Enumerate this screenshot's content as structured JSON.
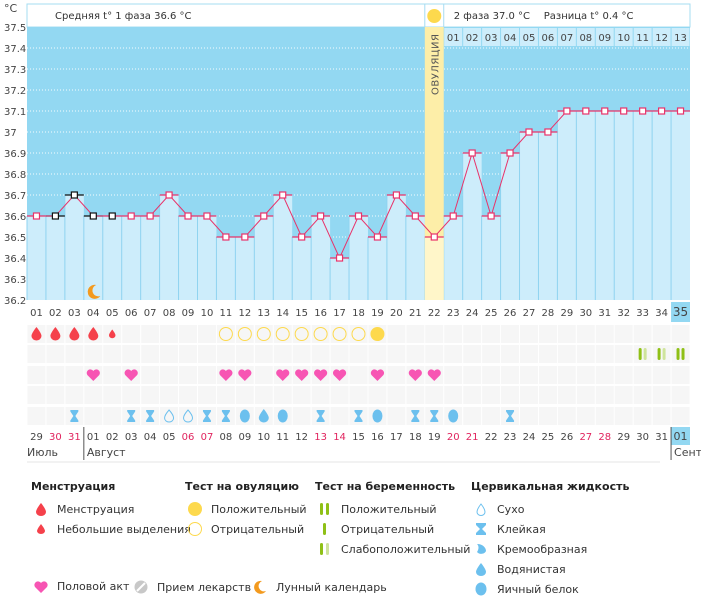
{
  "chart_data": {
    "type": "line",
    "title": "",
    "ylabel": "°C",
    "ylim": [
      36.2,
      37.5
    ],
    "yticks": [
      "37.5",
      "37.4",
      "37.3",
      "37.2",
      "37.1",
      "37",
      "36.9",
      "36.8",
      "36.7",
      "36.6",
      "36.5",
      "36.4",
      "36.3",
      "36.2"
    ],
    "x": [
      "01",
      "02",
      "03",
      "04",
      "05",
      "06",
      "07",
      "08",
      "09",
      "10",
      "11",
      "12",
      "13",
      "14",
      "15",
      "16",
      "17",
      "18",
      "19",
      "20",
      "21",
      "22",
      "23",
      "24",
      "25",
      "26",
      "27",
      "28",
      "29",
      "30",
      "31",
      "32",
      "33",
      "34",
      "35"
    ],
    "series": [
      {
        "name": "Базальная температура",
        "values": [
          36.6,
          36.6,
          36.7,
          36.6,
          36.6,
          36.6,
          36.6,
          36.7,
          36.6,
          36.6,
          36.5,
          36.5,
          36.6,
          36.7,
          36.5,
          36.6,
          36.4,
          36.6,
          36.5,
          36.7,
          36.6,
          36.5,
          36.6,
          36.9,
          36.6,
          36.9,
          37.0,
          37.0,
          37.1,
          37.1,
          37.1,
          37.1,
          37.1,
          37.1,
          37.1
        ]
      }
    ],
    "black_marker_days": [
      2,
      3,
      4,
      5
    ],
    "ovulation_day": 22,
    "current_day": 35,
    "phase2_days": [
      "01",
      "02",
      "03",
      "04",
      "05",
      "06",
      "07",
      "08",
      "09",
      "10",
      "11",
      "12",
      "13"
    ],
    "moon_day": 4,
    "grid": true
  },
  "header": {
    "phase1_label": "Средняя t° 1 фаза",
    "phase1_value": "36.6 °C",
    "phase2_label": "2 фаза",
    "phase2_value": "37.0 °C",
    "diff_label": "Разница t°",
    "diff_value": "0.4 °C",
    "ovulation_label": "ОВУЛЯЦИЯ",
    "unit": "°C"
  },
  "calendar": {
    "dates": [
      "29",
      "30",
      "31",
      "01",
      "02",
      "03",
      "04",
      "05",
      "06",
      "07",
      "08",
      "09",
      "10",
      "11",
      "12",
      "13",
      "14",
      "15",
      "16",
      "17",
      "18",
      "19",
      "20",
      "21",
      "22",
      "23",
      "24",
      "25",
      "26",
      "27",
      "28",
      "29",
      "30",
      "31",
      "01"
    ],
    "weekend_dates_idx": [
      1,
      2,
      8,
      9,
      15,
      16,
      22,
      23,
      29,
      30
    ],
    "months": [
      {
        "label": "Июль",
        "start_idx": 0
      },
      {
        "label": "Август",
        "start_idx": 3
      },
      {
        "label": "Сент",
        "start_idx": 34
      }
    ],
    "menstruation": {
      "1": "full",
      "2": "full",
      "3": "full",
      "4": "full",
      "5": "light"
    },
    "ovulation_test": {
      "11": "neg",
      "12": "neg",
      "13": "neg",
      "14": "neg",
      "15": "neg",
      "16": "neg",
      "17": "neg",
      "18": "neg",
      "19": "pos"
    },
    "pregnancy_test": {
      "33": "weak",
      "34": "weak",
      "35": "pos"
    },
    "intercourse": [
      4,
      6,
      11,
      12,
      14,
      15,
      16,
      17,
      19,
      21,
      22
    ],
    "cervical": {
      "3": "sticky",
      "6": "sticky",
      "7": "sticky",
      "8": "dry",
      "9": "dry",
      "10": "sticky",
      "11": "sticky",
      "12": "egg",
      "13": "watery",
      "14": "egg",
      "16": "sticky",
      "18": "sticky",
      "19": "egg",
      "21": "sticky",
      "22": "sticky",
      "23": "egg",
      "26": "sticky"
    }
  },
  "legend": {
    "menstruation": {
      "title": "Менструация",
      "items": [
        "Менструация",
        "Небольшие выделения"
      ]
    },
    "ovulation_test": {
      "title": "Тест на овуляцию",
      "items": [
        "Положительный",
        "Отрицательный"
      ]
    },
    "pregnancy_test": {
      "title": "Тест на беременность",
      "items": [
        "Положительный",
        "Отрицательный",
        "Слабоположительный"
      ]
    },
    "cervical": {
      "title": "Цервикальная жидкость",
      "items": [
        "Сухо",
        "Клейкая",
        "Кремообразная",
        "Водянистая",
        "Яичный белок"
      ]
    },
    "bottom": [
      "Половой акт",
      "Прием лекарств",
      "Лунный календарь"
    ]
  },
  "colors": {
    "bg_top": "#93d8f2",
    "bar": "#cdedfb",
    "line": "#e8336a",
    "ovulation": "#fdeea8",
    "sun": "#fdd94d",
    "blood": "#f5414b",
    "heart": "#f755b3",
    "preg": "#8fc017",
    "preg_light": "#cfe49c",
    "fluid": "#6cc0ee",
    "moon": "#f39a1e",
    "weekend": "#e0245e"
  }
}
